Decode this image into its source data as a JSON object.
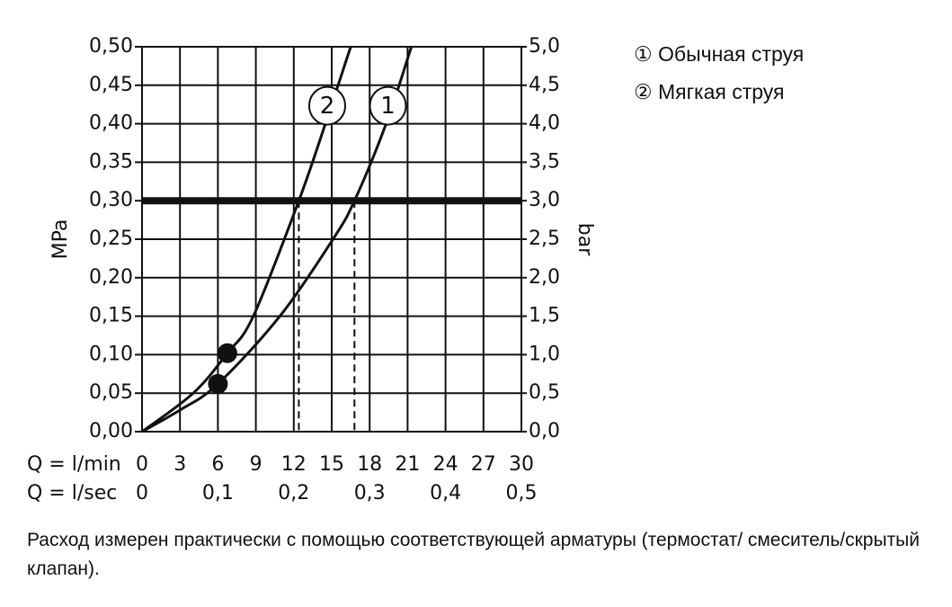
{
  "chart_data": {
    "type": "line",
    "ylabel": "MPa",
    "y2label": "bar",
    "xlabel": "Q = l/min",
    "x2label": "Q = l/sec",
    "xlim": [
      0,
      30
    ],
    "xticks": [
      0,
      3,
      6,
      9,
      12,
      15,
      18,
      21,
      24,
      27,
      30
    ],
    "x2lim": [
      0,
      0.5
    ],
    "x2ticks": [
      0,
      {
        "value": 0.1,
        "label": "0,1"
      },
      {
        "value": 0.2,
        "label": "0,2"
      },
      {
        "value": 0.3,
        "label": "0,3"
      },
      {
        "value": 0.4,
        "label": "0,4"
      },
      {
        "value": 0.5,
        "label": "0,5"
      }
    ],
    "ylim": [
      0,
      0.5
    ],
    "yticks": [
      {
        "value": 0,
        "label": "0,00"
      },
      {
        "value": 0.05,
        "label": "0,05"
      },
      {
        "value": 0.1,
        "label": "0,10"
      },
      {
        "value": 0.15,
        "label": "0,15"
      },
      {
        "value": 0.2,
        "label": "0,20"
      },
      {
        "value": 0.25,
        "label": "0,25"
      },
      {
        "value": 0.3,
        "label": "0,30"
      },
      {
        "value": 0.35,
        "label": "0,35"
      },
      {
        "value": 0.4,
        "label": "0,40"
      },
      {
        "value": 0.45,
        "label": "0,45"
      },
      {
        "value": 0.5,
        "label": "0,50"
      }
    ],
    "y2lim": [
      0,
      5
    ],
    "y2ticks": [
      {
        "value": 0,
        "label": "0,0"
      },
      {
        "value": 0.5,
        "label": "0,5"
      },
      {
        "value": 1,
        "label": "1,0"
      },
      {
        "value": 1.5,
        "label": "1,5"
      },
      {
        "value": 2,
        "label": "2,0"
      },
      {
        "value": 2.5,
        "label": "2,5"
      },
      {
        "value": 3,
        "label": "3,0"
      },
      {
        "value": 3.5,
        "label": "3,5"
      },
      {
        "value": 4,
        "label": "4,0"
      },
      {
        "value": 4.5,
        "label": "4,5"
      },
      {
        "value": 5,
        "label": "5,0"
      }
    ],
    "grid": true,
    "reference_y": 0.3,
    "series": [
      {
        "name": "① Обычная струя",
        "label": "1",
        "color": "#111111",
        "x": [
          0,
          3,
          6,
          10.9,
          15.1,
          16.8,
          19.3,
          21.3
        ],
        "values": [
          0,
          0.028,
          0.062,
          0.15,
          0.25,
          0.3,
          0.4,
          0.5
        ],
        "point": {
          "x": 6.0,
          "y": 0.062
        }
      },
      {
        "name": "② Мягкая струя",
        "label": "2",
        "color": "#111111",
        "x": [
          0,
          4.05,
          6.75,
          8.8,
          12.4,
          14.5,
          16.5
        ],
        "values": [
          0,
          0.05,
          0.102,
          0.15,
          0.3,
          0.4,
          0.5
        ],
        "point": {
          "x": 6.75,
          "y": 0.102
        }
      }
    ],
    "note": "Расход измерен практически с помощью соответствующей арматуры (термостат/ смеситель/скрытый клапан)."
  }
}
